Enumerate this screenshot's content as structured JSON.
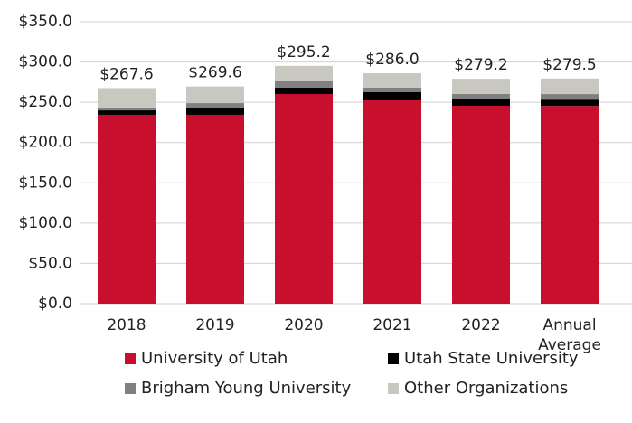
{
  "chart_data": {
    "type": "stacked_bar",
    "categories": [
      "2018",
      "2019",
      "2020",
      "2021",
      "2022",
      "Annual Average"
    ],
    "series": [
      {
        "name": "University of Utah",
        "color": "#c8102e",
        "values": [
          234.5,
          234.5,
          260.3,
          252.4,
          245.7,
          245.5
        ]
      },
      {
        "name": "Utah State University",
        "color": "#000000",
        "values": [
          5.5,
          7.8,
          7.8,
          10.1,
          7.8,
          7.8
        ]
      },
      {
        "name": "Brigham Young University",
        "color": "#808080",
        "values": [
          3.5,
          6.7,
          7.9,
          5.6,
          6.8,
          6.9
        ]
      },
      {
        "name": "Other Organizations",
        "color": "#c8c8c0",
        "values": [
          24.1,
          20.6,
          19.2,
          17.9,
          18.9,
          19.3
        ]
      }
    ],
    "totals": [
      267.6,
      269.6,
      295.2,
      286.0,
      279.2,
      279.5
    ],
    "total_labels": [
      "$267.6",
      "$269.6",
      "$295.2",
      "$286.0",
      "$279.2",
      "$279.5"
    ],
    "ylim": [
      0,
      350
    ],
    "yticks": [
      {
        "value": 0,
        "label": "$0.0"
      },
      {
        "value": 50,
        "label": "$50.0"
      },
      {
        "value": 100,
        "label": "$100.0"
      },
      {
        "value": 150,
        "label": "$150.0"
      },
      {
        "value": 200,
        "label": "$200.0"
      },
      {
        "value": 250,
        "label": "$250.0"
      },
      {
        "value": 300,
        "label": "$300.0"
      },
      {
        "value": 350,
        "label": "$350.0"
      }
    ],
    "grid": true
  }
}
